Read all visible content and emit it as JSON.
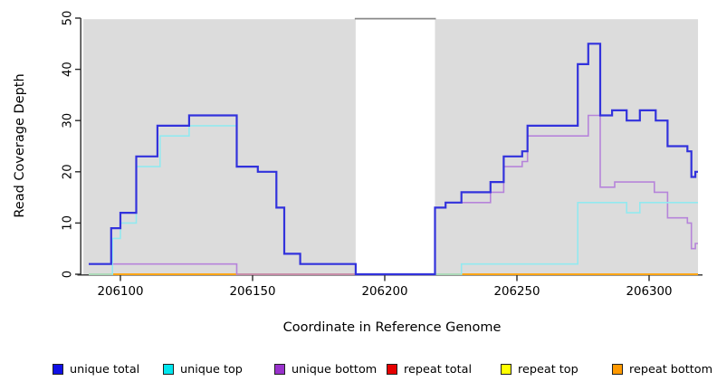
{
  "y_axis": {
    "label": "Read Coverage Depth",
    "ticks": [
      0,
      10,
      20,
      30,
      40,
      50
    ]
  },
  "x_axis": {
    "label": "Coordinate in Reference Genome",
    "ticks": [
      206100,
      206150,
      206200,
      206250,
      206300
    ]
  },
  "legend": [
    {
      "label": "unique total",
      "swatch": "#1010e6"
    },
    {
      "label": "unique top",
      "swatch": "#00e6ee"
    },
    {
      "label": "unique bottom",
      "swatch": "#9932cc"
    },
    {
      "label": "repeat total",
      "swatch": "#e60000"
    },
    {
      "label": "repeat top",
      "swatch": "#ffff00"
    },
    {
      "label": "repeat bottom",
      "swatch": "#ff9900"
    }
  ],
  "chart_data": {
    "type": "line",
    "subtype": "step",
    "title": "",
    "xlabel": "Coordinate in Reference Genome",
    "ylabel": "Read Coverage Depth",
    "xlim": [
      206085,
      206322
    ],
    "ylim": [
      0,
      50
    ],
    "panel_color": "#dcdcdc",
    "gap_cap_color": "#8a8a8a",
    "axis_color": "#2b2b2b",
    "shaded_regions": [
      [
        206086,
        206189
      ],
      [
        206219,
        206318.5
      ]
    ],
    "coverage_gap": [
      206189,
      206219
    ],
    "x_start": 206088,
    "x_end": 206318.5,
    "series": [
      {
        "name": "repeat total",
        "color": "#dd0000",
        "width": 1.8,
        "points": [
          [
            206088,
            0
          ]
        ]
      },
      {
        "name": "repeat top",
        "color": "#ffee00",
        "width": 1.8,
        "points": [
          [
            206088,
            0
          ]
        ]
      },
      {
        "name": "repeat bottom",
        "color": "#ffa319",
        "width": 1.8,
        "points": [
          [
            206088,
            0
          ]
        ]
      },
      {
        "name": "unique bottom",
        "color": "#b684da",
        "width": 1.6,
        "points": [
          [
            206088,
            2
          ],
          [
            206144,
            0
          ],
          [
            206219,
            13
          ],
          [
            206223,
            14
          ],
          [
            206240,
            16
          ],
          [
            206245,
            21
          ],
          [
            206252,
            22
          ],
          [
            206254,
            27
          ],
          [
            206277,
            31
          ],
          [
            206281.5,
            17
          ],
          [
            206287,
            18
          ],
          [
            206302,
            16
          ],
          [
            206307,
            11
          ],
          [
            206314.5,
            10
          ],
          [
            206316,
            5
          ],
          [
            206317.5,
            6
          ]
        ]
      },
      {
        "name": "unique top",
        "color": "#92e9ef",
        "width": 1.6,
        "points": [
          [
            206088,
            0
          ],
          [
            206097,
            7
          ],
          [
            206100,
            10
          ],
          [
            206106,
            21
          ],
          [
            206115,
            27
          ],
          [
            206126,
            29
          ],
          [
            206144,
            21
          ],
          [
            206152,
            20
          ],
          [
            206159,
            13
          ],
          [
            206162,
            4
          ],
          [
            206168,
            2
          ],
          [
            206189,
            0
          ],
          [
            206229,
            2
          ],
          [
            206273,
            14
          ],
          [
            206291.5,
            12
          ],
          [
            206296.5,
            14
          ]
        ]
      },
      {
        "name": "unique total",
        "color": "#3232dc",
        "width": 2.2,
        "points": [
          [
            206088,
            2
          ],
          [
            206096.5,
            9
          ],
          [
            206100,
            12
          ],
          [
            206106,
            23
          ],
          [
            206114,
            29
          ],
          [
            206126,
            31
          ],
          [
            206144,
            21
          ],
          [
            206152,
            20
          ],
          [
            206159,
            13
          ],
          [
            206162,
            4
          ],
          [
            206168,
            2
          ],
          [
            206189,
            0
          ],
          [
            206219,
            13
          ],
          [
            206223,
            14
          ],
          [
            206229,
            16
          ],
          [
            206240,
            18
          ],
          [
            206245,
            23
          ],
          [
            206252,
            24
          ],
          [
            206254,
            29
          ],
          [
            206273,
            41
          ],
          [
            206277,
            45
          ],
          [
            206281.5,
            31
          ],
          [
            206286,
            32
          ],
          [
            206291.5,
            30
          ],
          [
            206296.5,
            32
          ],
          [
            206302.5,
            30
          ],
          [
            206307,
            25
          ],
          [
            206314.5,
            24
          ],
          [
            206316,
            19
          ],
          [
            206317.5,
            20
          ]
        ]
      }
    ],
    "legend_entries": [
      "unique total",
      "unique top",
      "unique bottom",
      "repeat total",
      "repeat top",
      "repeat bottom"
    ]
  }
}
